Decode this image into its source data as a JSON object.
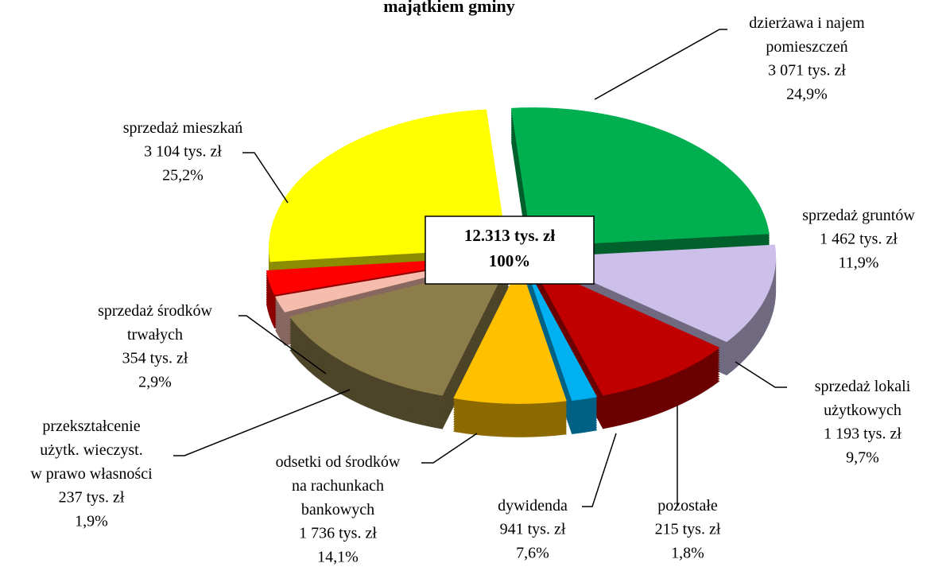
{
  "chart_data": {
    "type": "pie",
    "title": "majątkiem gminy",
    "categories": [
      "dzierżawa i najem\npomieszczeń",
      "sprzedaż gruntów",
      "sprzedaż lokali\nużytkowych",
      "pozostałe",
      "dywidenda",
      "odsetki od środków\nna rachunkach\nbankowych",
      "przekształcenie\nużytk. wieczyst.\nw prawo własności",
      "sprzedaż środków\ntrwałych",
      "sprzedaż mieszkań"
    ],
    "values": [
      3071,
      1462,
      1193,
      215,
      941,
      1736,
      237,
      354,
      3104
    ],
    "value_labels": [
      "3 071 tys. zł",
      "1 462 tys. zł",
      "1 193 tys. zł",
      "215 tys. zł",
      "941 tys. zł",
      "1 736 tys. zł",
      "237 tys. zł",
      "354 tys. zł",
      "3 104 tys. zł"
    ],
    "percent_labels": [
      "24,9%",
      "11,9%",
      "9,7%",
      "1,8%",
      "7,6%",
      "14,1%",
      "1,9%",
      "2,9%",
      "25,2%"
    ],
    "colors": [
      "#00b050",
      "#ccc0ea",
      "#c00000",
      "#00b0f0",
      "#ffc000",
      "#8c7d4a",
      "#f6bcae",
      "#ff0000",
      "#ffff00"
    ],
    "total_label": "12.313 tys. zł",
    "total_percent_label": "100%"
  }
}
